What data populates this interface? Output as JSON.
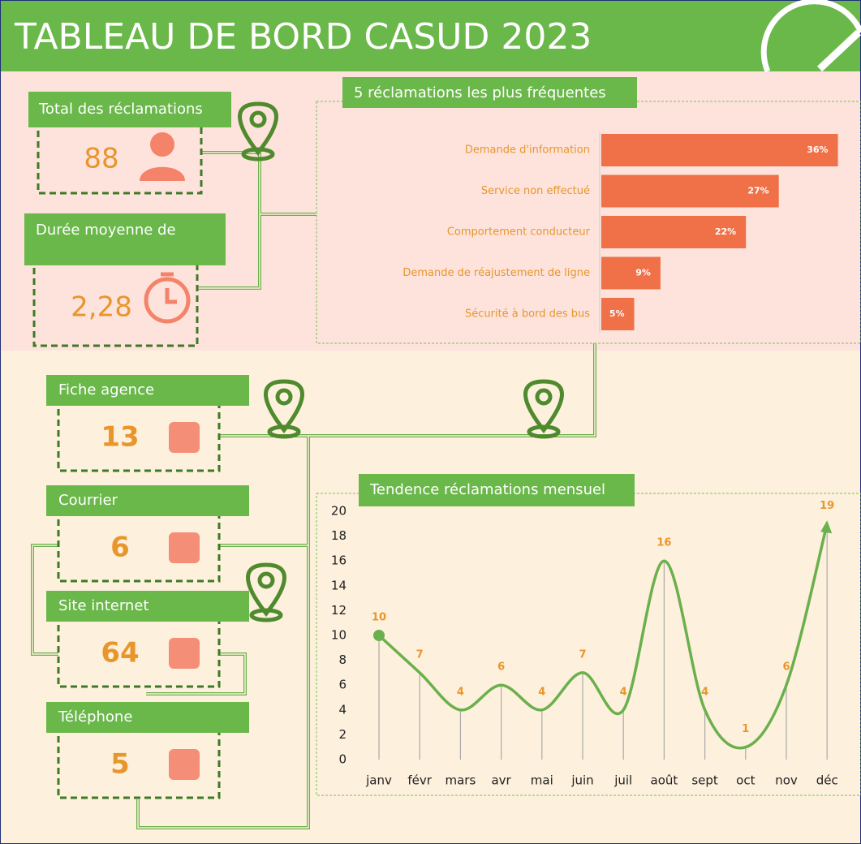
{
  "header": {
    "title": "TABLEAU DE BORD CASUD 2023"
  },
  "kpis": [
    {
      "label": "Total des réclamations",
      "value": 88
    },
    {
      "label": "Durée moyenne de",
      "value": "2,28"
    }
  ],
  "channels": [
    {
      "label": "Fiche agence",
      "value": 13
    },
    {
      "label": "Courrier",
      "value": 6
    },
    {
      "label": "Site internet",
      "value": 64
    },
    {
      "label": "Téléphone",
      "value": 5
    }
  ],
  "chart_data": [
    {
      "type": "bar",
      "title": "5 réclamations les plus fréquentes",
      "categories": [
        "Demande d'information",
        "Service non effectué",
        "Comportement conducteur",
        "Demande de réajustement de ligne",
        "Sécurité à bord des bus"
      ],
      "values": [
        36,
        27,
        22,
        9,
        5
      ],
      "value_labels": [
        "36%",
        "27%",
        "22%",
        "9%",
        "5%"
      ],
      "color": "#f07048"
    },
    {
      "type": "line",
      "title": "Tendence réclamations mensuel",
      "categories": [
        "janv",
        "févr",
        "mars",
        "avr",
        "mai",
        "juin",
        "juil",
        "août",
        "sept",
        "oct",
        "nov",
        "déc"
      ],
      "values": [
        10,
        7,
        4,
        6,
        4,
        7,
        4,
        16,
        4,
        1,
        6,
        19
      ],
      "ylim": [
        0,
        20
      ],
      "yticks": [
        0,
        2,
        4,
        6,
        8,
        10,
        12,
        14,
        16,
        18,
        20
      ],
      "color": "#6ab04c"
    }
  ]
}
